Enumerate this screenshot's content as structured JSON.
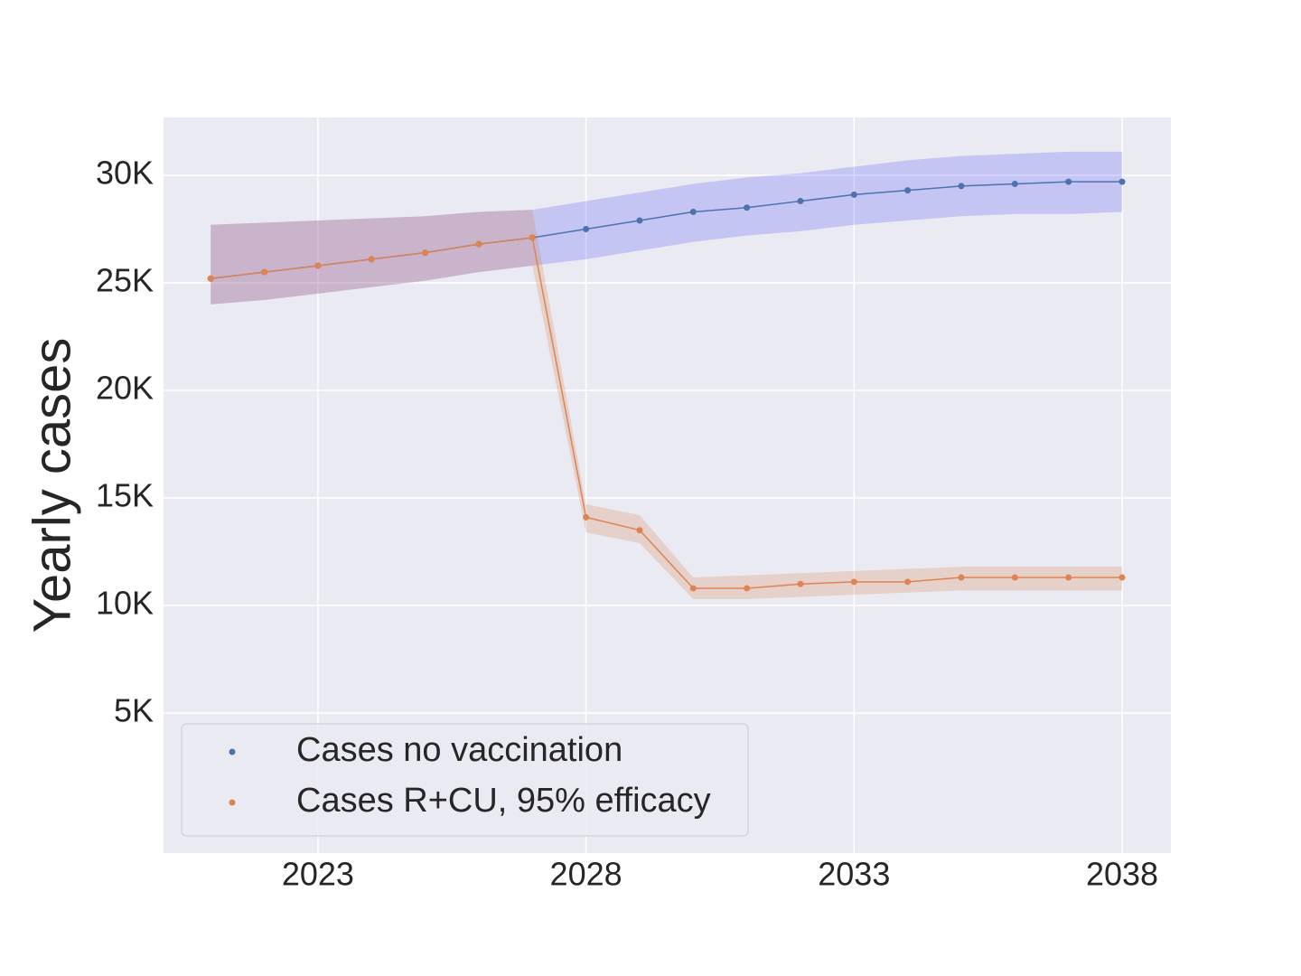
{
  "chart_data": {
    "type": "line",
    "y_label": "Yearly cases",
    "x": [
      2021,
      2022,
      2023,
      2024,
      2025,
      2026,
      2027,
      2028,
      2029,
      2030,
      2031,
      2032,
      2033,
      2034,
      2035,
      2036,
      2037,
      2038
    ],
    "series": [
      {
        "name": "Cases no vaccination",
        "color": "#4c72b0",
        "band_color": "#3333ff",
        "values": [
          25200,
          25500,
          25800,
          26100,
          26400,
          26800,
          27100,
          27500,
          27900,
          28300,
          28500,
          28800,
          29100,
          29300,
          29500,
          29600,
          29700,
          29700
        ],
        "lower": [
          24000,
          24200,
          24500,
          24800,
          25100,
          25500,
          25800,
          26100,
          26500,
          26900,
          27200,
          27400,
          27700,
          27900,
          28100,
          28200,
          28200,
          28300
        ],
        "upper": [
          27700,
          27800,
          27900,
          28000,
          28100,
          28300,
          28400,
          28800,
          29200,
          29600,
          29900,
          30100,
          30400,
          30700,
          30900,
          31000,
          31100,
          31100
        ]
      },
      {
        "name": "Cases R+CU, 95% efficacy",
        "color": "#dd8452",
        "band_color": "#dd8452",
        "values": [
          25200,
          25500,
          25800,
          26100,
          26400,
          26800,
          27100,
          14100,
          13500,
          10800,
          10800,
          11000,
          11100,
          11100,
          11300,
          11300,
          11300,
          11300
        ],
        "lower": [
          24000,
          24200,
          24500,
          24800,
          25100,
          25500,
          25800,
          13400,
          12900,
          10300,
          10300,
          10400,
          10500,
          10600,
          10700,
          10700,
          10700,
          10700
        ],
        "upper": [
          27700,
          27800,
          27900,
          28000,
          28100,
          28300,
          28400,
          14700,
          14200,
          11300,
          11400,
          11500,
          11600,
          11700,
          11800,
          11800,
          11800,
          11800
        ]
      }
    ],
    "xlim": [
      2020.12,
      2038.91
    ],
    "xticks": [
      2023,
      2028,
      2033,
      2038
    ],
    "ylim": [
      -1513,
      32689
    ],
    "yticks": [
      {
        "value": 5000,
        "label": "5K"
      },
      {
        "value": 10000,
        "label": "10K"
      },
      {
        "value": 15000,
        "label": "15K"
      },
      {
        "value": 20000,
        "label": "20K"
      },
      {
        "value": 25000,
        "label": "25K"
      },
      {
        "value": 30000,
        "label": "30K"
      }
    ],
    "grid": true,
    "legend": "lower left"
  }
}
